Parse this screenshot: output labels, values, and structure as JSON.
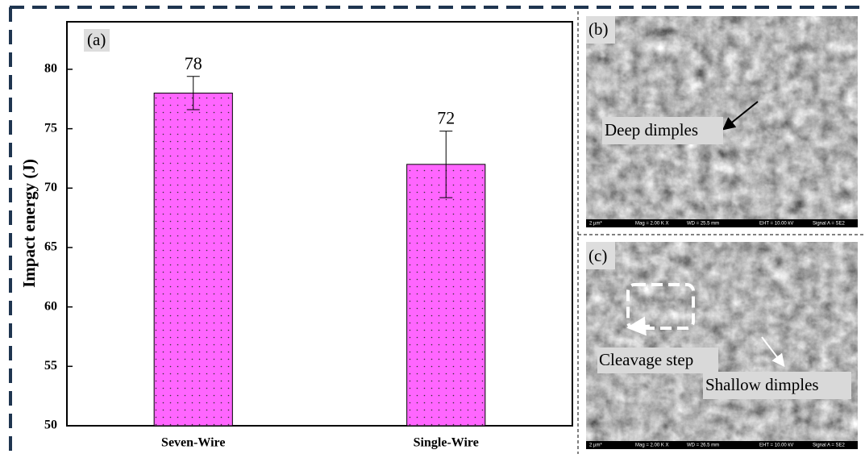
{
  "chart_data": {
    "type": "bar",
    "panel_label": "(a)",
    "ylabel": "Impact energy (J)",
    "categories": [
      "Seven-Wire",
      "Single-Wire"
    ],
    "values": [
      78,
      72
    ],
    "errors": [
      1.4,
      2.8
    ],
    "color": "#ff66ff",
    "ylim": [
      50,
      84
    ],
    "yticks": [
      50,
      55,
      60,
      65,
      70,
      75,
      80
    ]
  },
  "images": [
    {
      "label": "(b)",
      "annotations": [
        "Deep dimples"
      ],
      "footer": [
        "2 µm*",
        "Mag =   2.00 K X",
        "WD = 25.5 mm",
        "EHT = 10.00 kV",
        "Signal A = SE2"
      ]
    },
    {
      "label": "(c)",
      "annotations": [
        "Cleavage step",
        "Shallow dimples"
      ],
      "footer": [
        "2 µm*",
        "Mag =   2.00 K X",
        "WD = 26.5 mm",
        "EHT = 10.00 kV",
        "Signal A = SE2"
      ]
    }
  ]
}
